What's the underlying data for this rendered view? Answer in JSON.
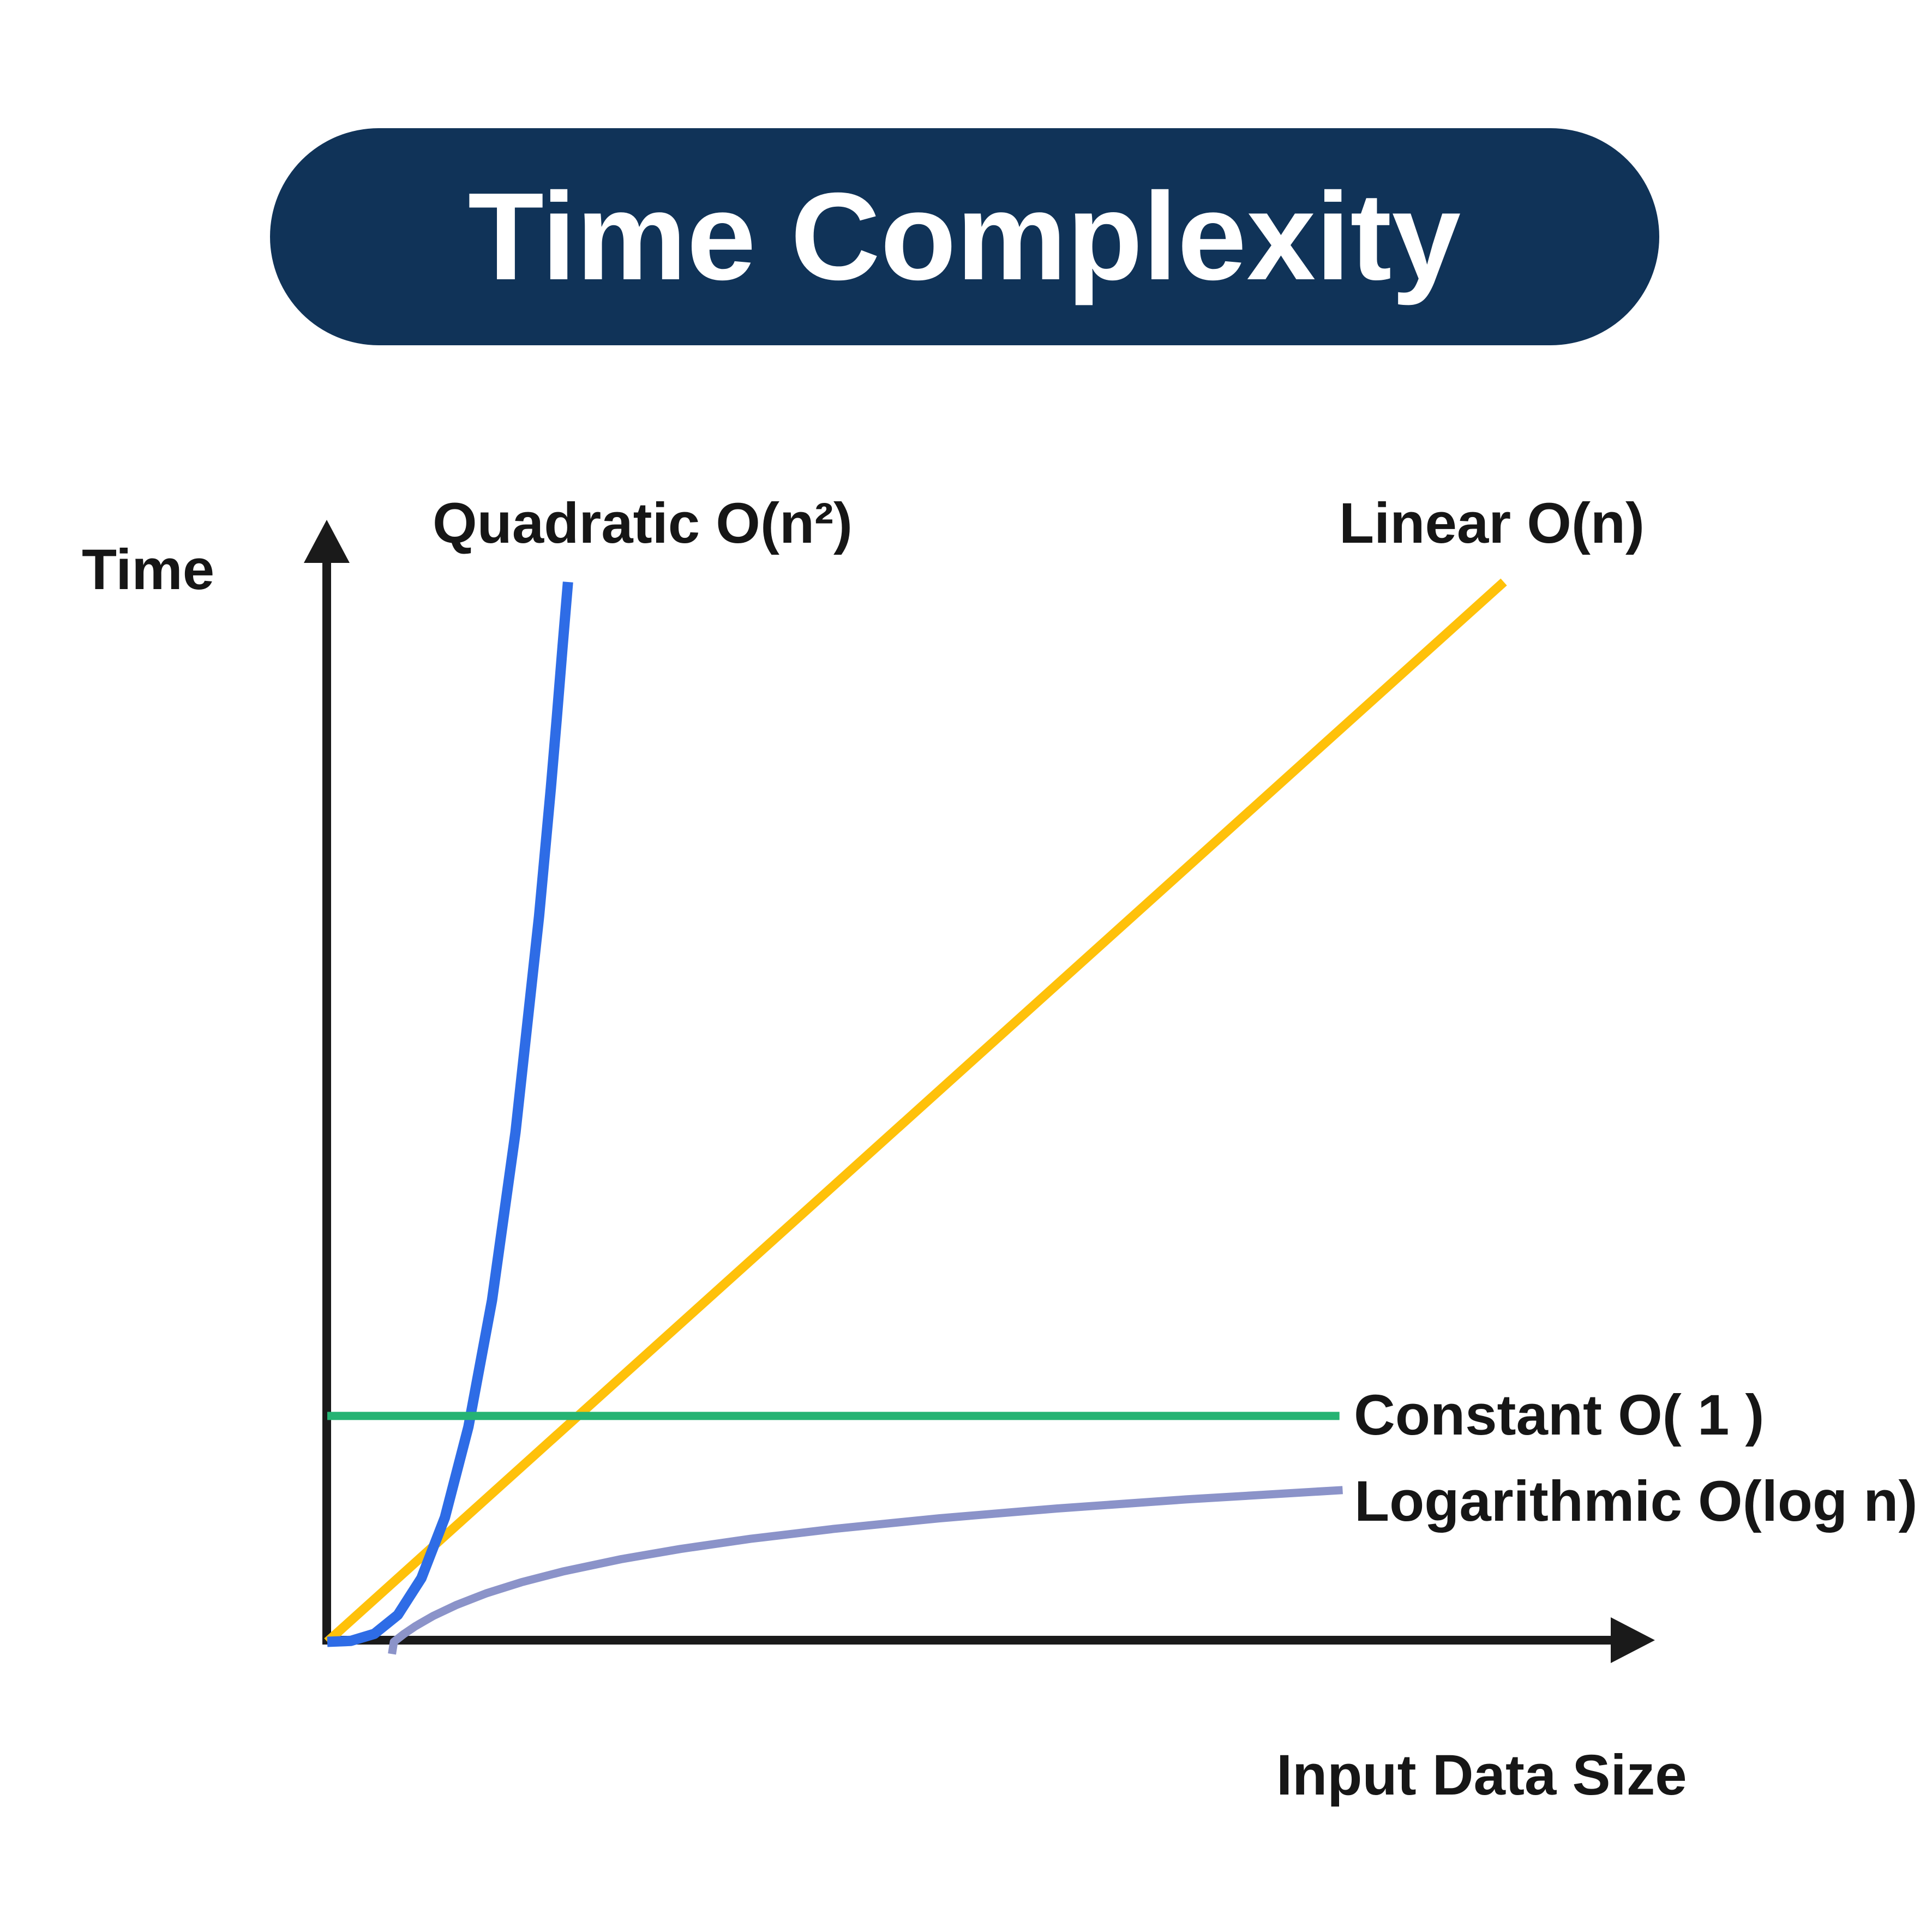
{
  "page": {
    "background": "#ffffff"
  },
  "colors": {
    "pill": "#103358",
    "axis": "#1a1a1a",
    "text": "#161616",
    "title_text": "#ffffff"
  },
  "chart_data": {
    "type": "line",
    "title": "Time Complexity",
    "xlabel": "Input Data Size",
    "ylabel": "Time",
    "xlim": [
      0,
      11
    ],
    "ylim": [
      0,
      10.5
    ],
    "grid": false,
    "ticks": "none",
    "legend": "inline-labels",
    "axes_style": "arrows, unlabeled conceptual axes (relative units)",
    "series": [
      {
        "name": "Quadratic O(n²)",
        "color": "#2E6CE6",
        "stroke_width": 19,
        "shape": "steeply rising polynomial curve",
        "points": [
          [
            0,
            0
          ],
          [
            0.2,
            0.009
          ],
          [
            0.4,
            0.075
          ],
          [
            0.6,
            0.254
          ],
          [
            0.8,
            0.601
          ],
          [
            1.0,
            1.174
          ],
          [
            1.2,
            2.029
          ],
          [
            1.4,
            3.222
          ],
          [
            1.6,
            4.809
          ],
          [
            1.8,
            6.847
          ],
          [
            1.9,
            8.051
          ],
          [
            1.95,
            8.705
          ],
          [
            2.0,
            9.392
          ],
          [
            2.046,
            10.0
          ]
        ]
      },
      {
        "name": "Linear O(n)",
        "color": "#FFC10A",
        "stroke_width": 17,
        "shape": "straight diagonal line",
        "points": [
          [
            0,
            0
          ],
          [
            10,
            10
          ]
        ]
      },
      {
        "name": "Constant O( 1 )",
        "color": "#25B373",
        "stroke_width": 15,
        "shape": "horizontal line",
        "points": [
          [
            0,
            2.131
          ],
          [
            8.603,
            2.131
          ]
        ]
      },
      {
        "name": "Logarithmic O(log n)",
        "color": "#8B93C9",
        "stroke_width": 15,
        "shape": "rapidly flattening curve",
        "points": [
          [
            0.55,
            -0.115
          ],
          [
            0.566,
            0
          ],
          [
            0.65,
            0.073
          ],
          [
            0.75,
            0.148
          ],
          [
            0.9,
            0.244
          ],
          [
            1.1,
            0.349
          ],
          [
            1.35,
            0.457
          ],
          [
            1.65,
            0.562
          ],
          [
            2.0,
            0.663
          ],
          [
            2.5,
            0.78
          ],
          [
            3.0,
            0.876
          ],
          [
            3.6,
            0.972
          ],
          [
            4.3,
            1.065
          ],
          [
            5.2,
            1.165
          ],
          [
            6.2,
            1.258
          ],
          [
            7.3,
            1.344
          ],
          [
            8.63,
            1.432
          ]
        ]
      }
    ]
  }
}
